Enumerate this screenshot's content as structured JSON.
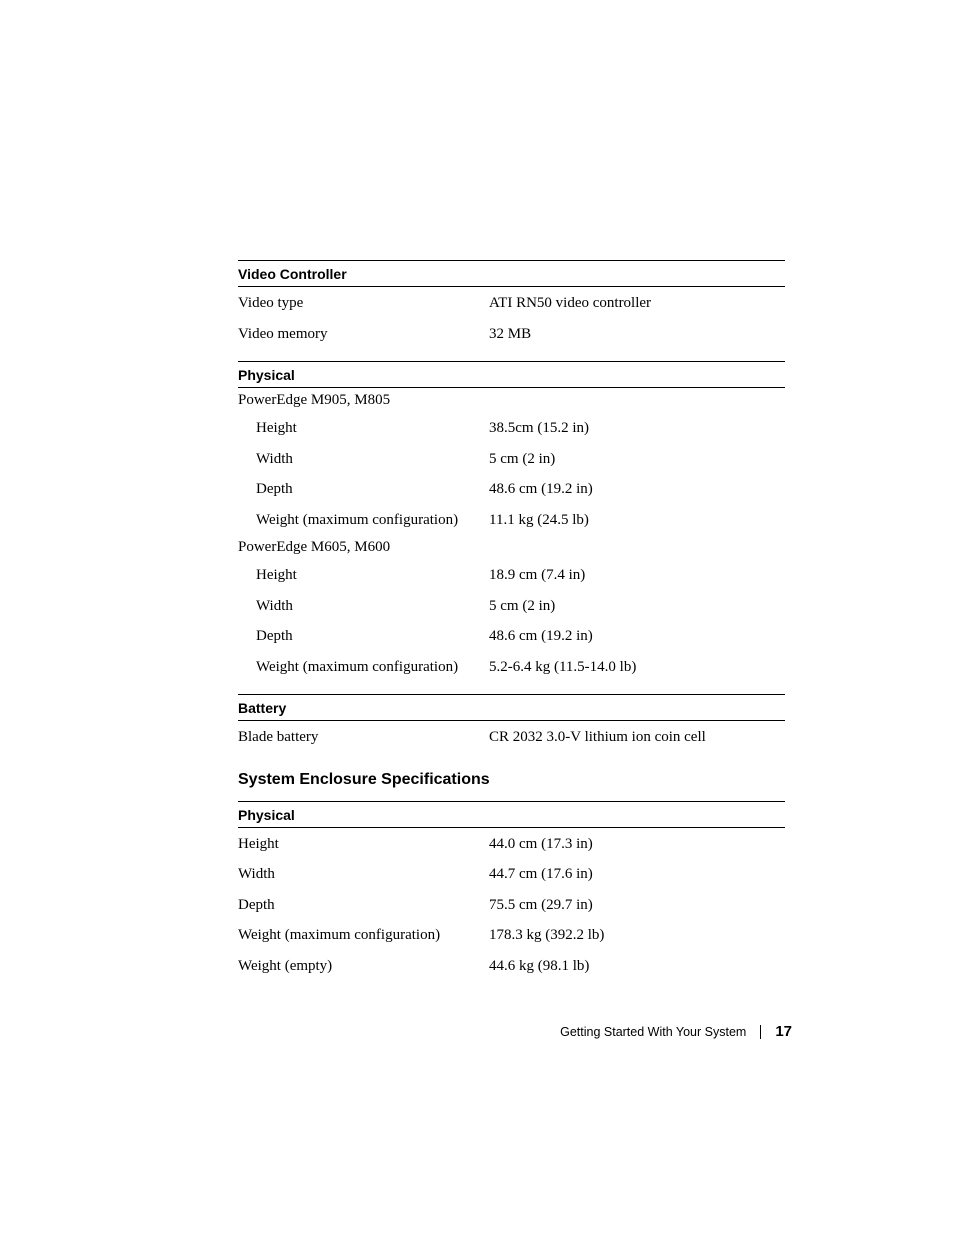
{
  "sections": {
    "videoController": {
      "header": "Video Controller",
      "rows": [
        {
          "label": "Video type",
          "value": "ATI RN50 video controller"
        },
        {
          "label": "Video memory",
          "value": "32 MB"
        }
      ]
    },
    "physical1": {
      "header": "Physical",
      "group1Label": "PowerEdge M905, M805",
      "group1Rows": [
        {
          "label": "Height",
          "value": "38.5cm (15.2 in)"
        },
        {
          "label": "Width",
          "value": "5 cm (2 in)"
        },
        {
          "label": "Depth",
          "value": "48.6 cm (19.2 in)"
        },
        {
          "label": "Weight (maximum configuration)",
          "value": "11.1 kg (24.5 lb)"
        }
      ],
      "group2Label": "PowerEdge M605, M600",
      "group2Rows": [
        {
          "label": "Height",
          "value": "18.9 cm (7.4 in)"
        },
        {
          "label": "Width",
          "value": "5 cm (2 in)"
        },
        {
          "label": "Depth",
          "value": "48.6 cm (19.2 in)"
        },
        {
          "label": "Weight (maximum configuration)",
          "value": "5.2-6.4 kg (11.5-14.0 lb)"
        }
      ]
    },
    "battery": {
      "header": "Battery",
      "rows": [
        {
          "label": "Blade battery",
          "value": "CR 2032 3.0-V lithium ion coin cell"
        }
      ]
    },
    "enclosureTitle": "System Enclosure Specifications",
    "physical2": {
      "header": "Physical",
      "rows": [
        {
          "label": "Height",
          "value": "44.0 cm (17.3 in)"
        },
        {
          "label": "Width",
          "value": "44.7 cm (17.6 in)"
        },
        {
          "label": "Depth",
          "value": "75.5 cm (29.7 in)"
        },
        {
          "label": "Weight (maximum configuration)",
          "value": "178.3 kg (392.2 lb)"
        },
        {
          "label": "Weight (empty)",
          "value": "44.6 kg (98.1 lb)"
        }
      ]
    }
  },
  "footer": {
    "text": "Getting Started With Your System",
    "page": "17"
  }
}
